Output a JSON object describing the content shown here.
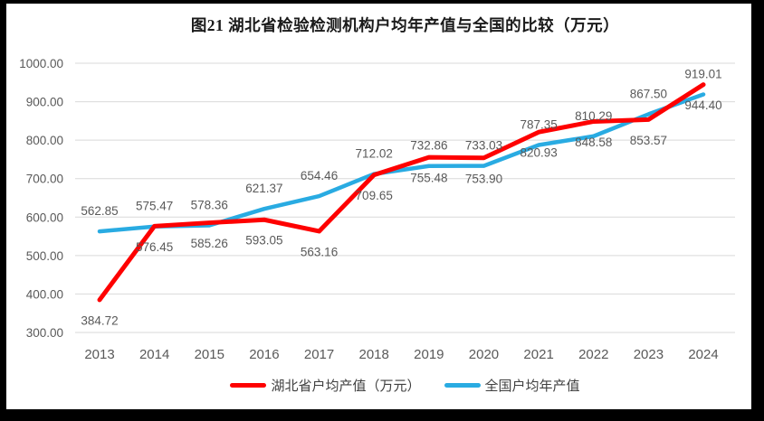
{
  "title": "图21  湖北省检验检测机构户均年产值与全国的比较（万元）",
  "legend": {
    "items": [
      "湖北省户均产值（万元）",
      "全国户均年产值"
    ]
  },
  "colors": {
    "frame": "#000000",
    "background": "#ffffff",
    "title_text": "#1a1a1a",
    "grid": "#d9d9d9",
    "axis_text": "#595959",
    "data_label_text": "#595959",
    "hubei_red": "#fe0000",
    "national_blue": "#29abe2"
  },
  "chart_data": {
    "type": "line",
    "title": "图21  湖北省检验检测机构户均年产值与全国的比较（万元）",
    "x": [
      "2013",
      "2014",
      "2015",
      "2016",
      "2017",
      "2018",
      "2019",
      "2020",
      "2021",
      "2022",
      "2023",
      "2024"
    ],
    "series": [
      {
        "name": "湖北省户均产值（万元）",
        "color": "#fe0000",
        "label_position": "below",
        "values": [
          384.72,
          576.45,
          585.26,
          593.05,
          563.16,
          709.65,
          755.48,
          753.9,
          820.93,
          848.58,
          853.57,
          944.4
        ]
      },
      {
        "name": "全国户均年产值",
        "color": "#29abe2",
        "label_position": "above",
        "values": [
          562.85,
          575.47,
          578.36,
          621.37,
          654.46,
          712.02,
          732.86,
          733.03,
          787.35,
          810.29,
          867.5,
          919.01
        ]
      }
    ],
    "ylim": [
      300,
      1000
    ],
    "ytick_step": 100,
    "ytick_labels": [
      "300.00",
      "400.00",
      "500.00",
      "600.00",
      "700.00",
      "800.00",
      "900.00",
      "1000.00"
    ],
    "grid": "horizontal",
    "legend_position": "bottom",
    "value_decimals": 2
  }
}
